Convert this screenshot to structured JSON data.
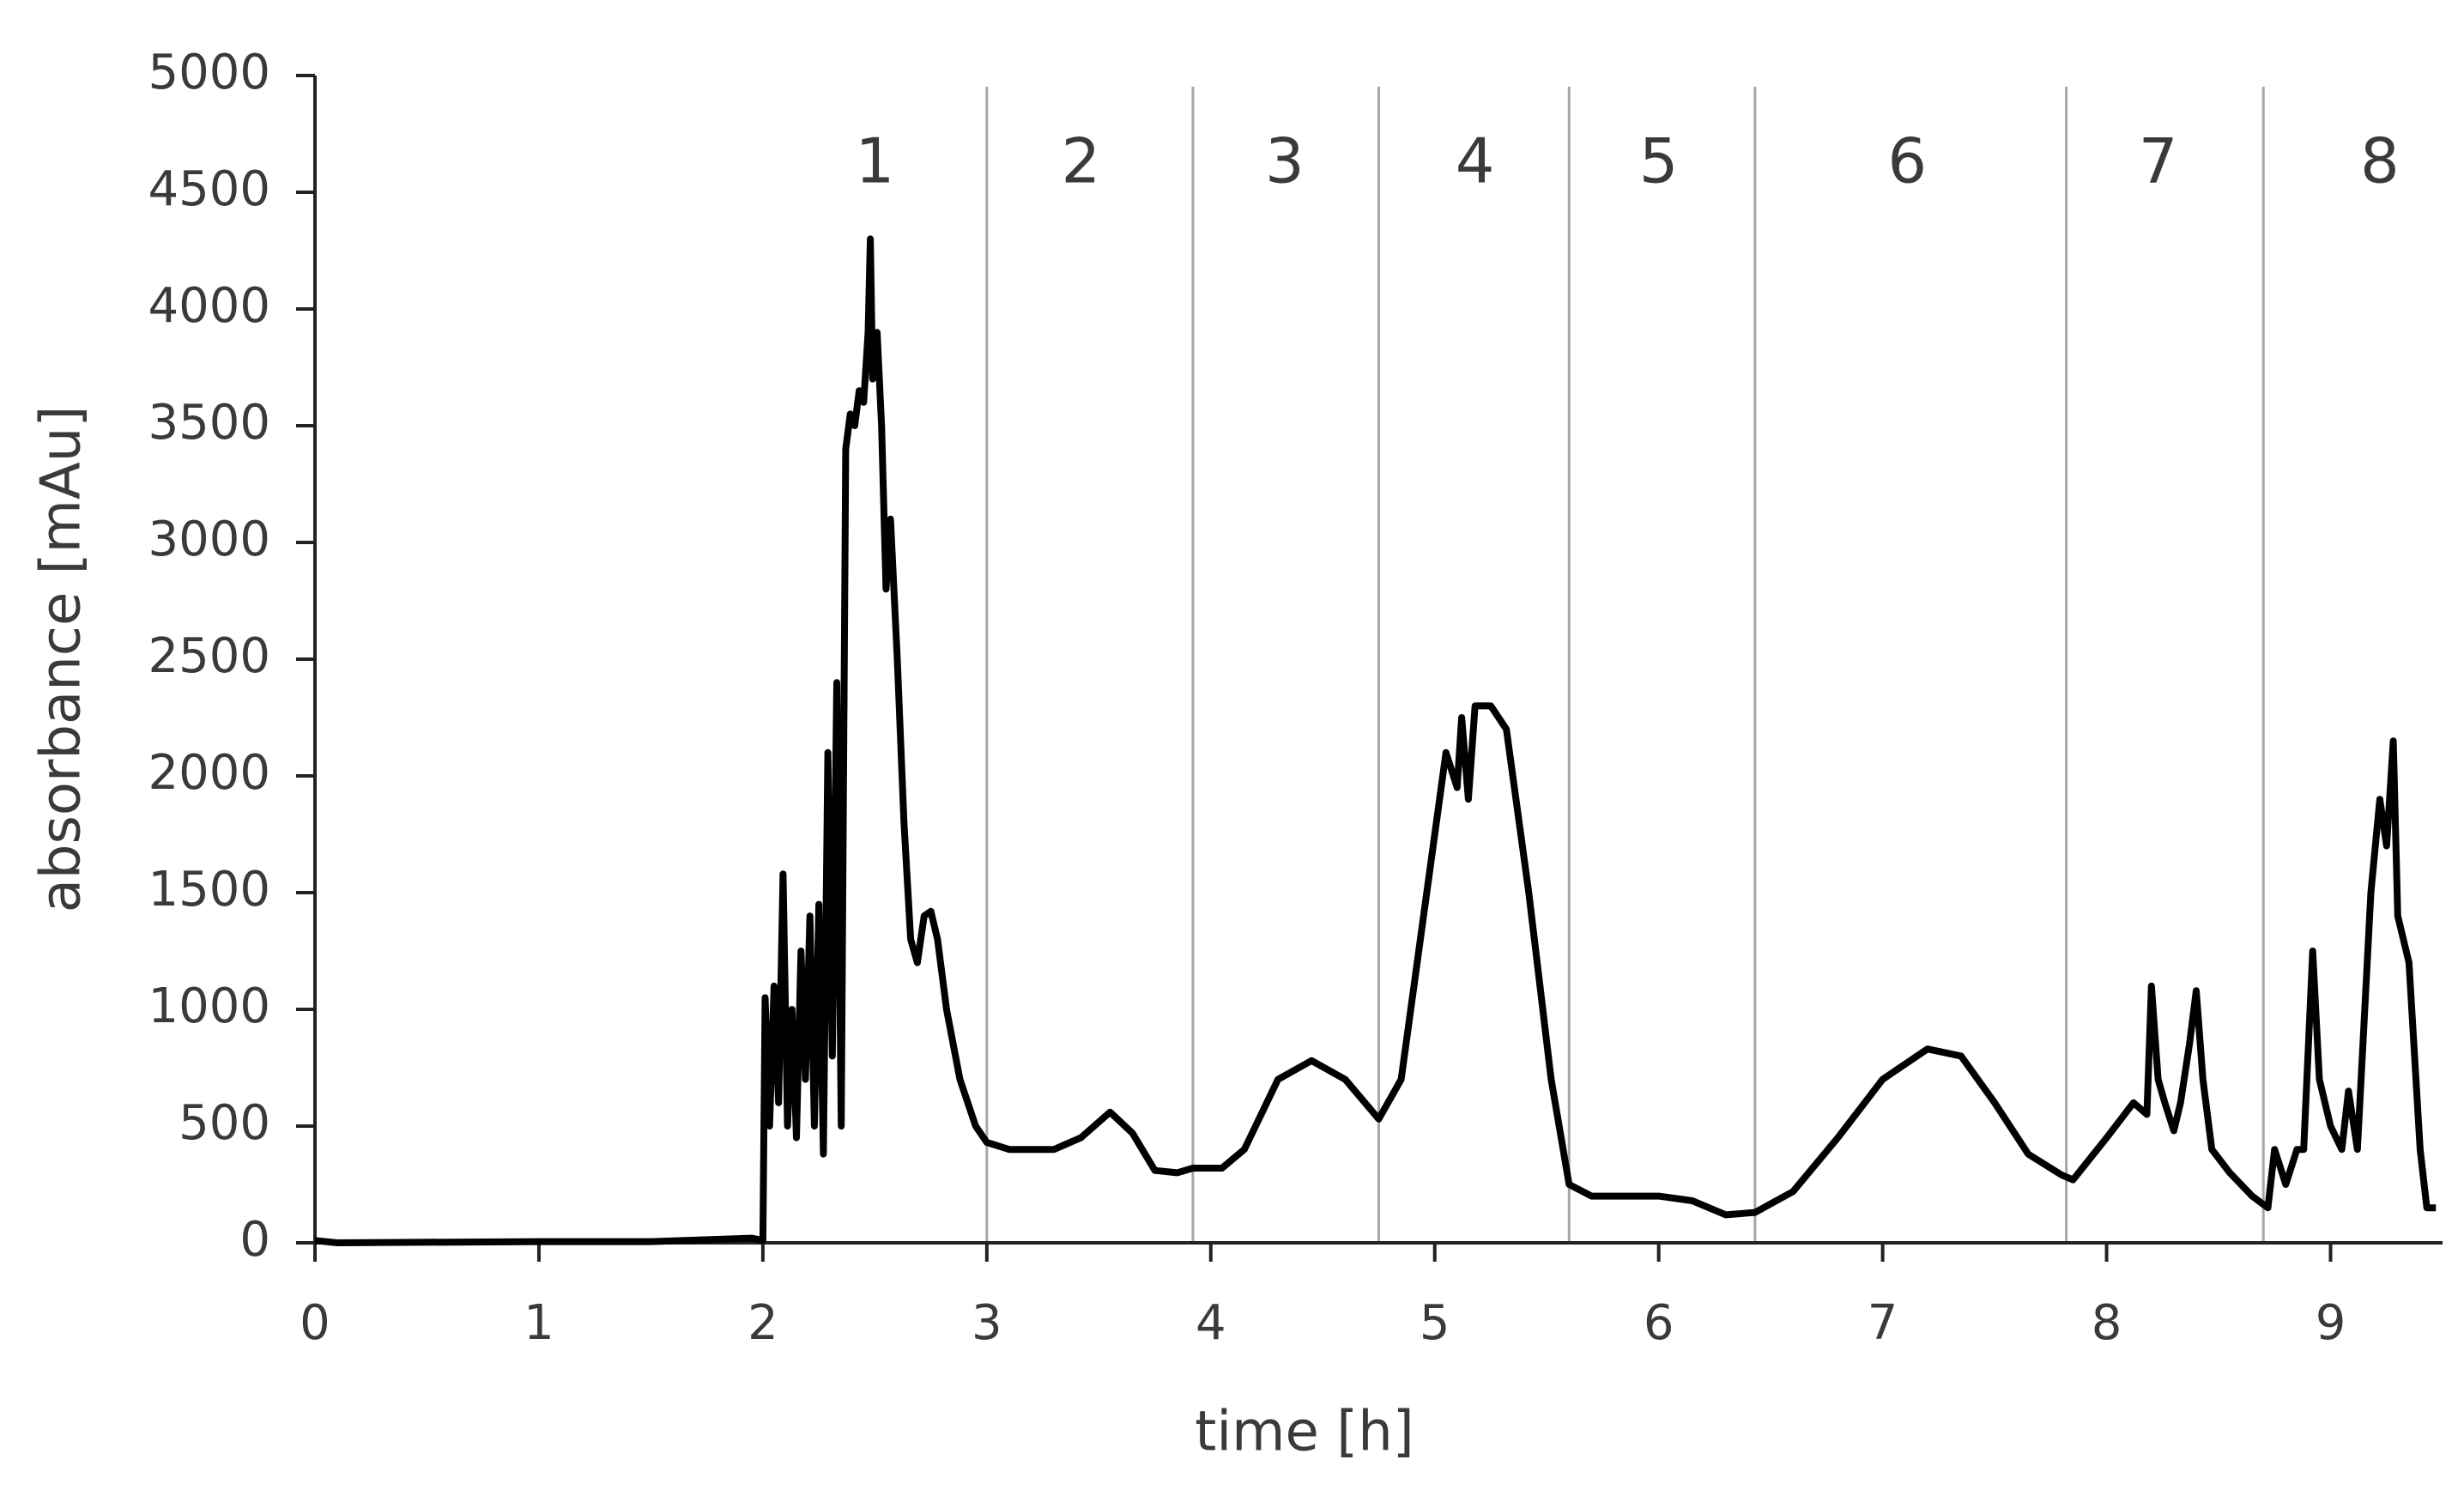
{
  "chart_data": {
    "type": "line",
    "xlabel": "time [h]",
    "ylabel": "absorbance [mAu]",
    "xlim": [
      0,
      9.5
    ],
    "xticks": [
      0,
      1,
      2,
      3,
      4,
      5,
      6,
      7,
      8,
      9
    ],
    "ylim": [
      0,
      5000
    ],
    "yticks": [
      0,
      500,
      1000,
      1500,
      2000,
      2500,
      3000,
      3500,
      4000,
      4500,
      5000
    ],
    "fraction_boundaries": [
      3.0,
      3.92,
      4.75,
      5.6,
      6.43,
      7.82,
      8.7
    ],
    "fractions": [
      {
        "label": "1",
        "x": 2.5
      },
      {
        "label": "2",
        "x": 3.42
      },
      {
        "label": "3",
        "x": 4.33
      },
      {
        "label": "4",
        "x": 5.18
      },
      {
        "label": "5",
        "x": 6.0
      },
      {
        "label": "6",
        "x": 7.11
      },
      {
        "label": "7",
        "x": 8.23
      },
      {
        "label": "8",
        "x": 9.22
      }
    ],
    "series": [
      {
        "color": "#000000",
        "x": [
          0,
          0.1,
          1,
          1.5,
          1.95,
          2.0,
          2.01,
          2.03,
          2.05,
          2.07,
          2.09,
          2.11,
          2.13,
          2.15,
          2.17,
          2.19,
          2.21,
          2.23,
          2.25,
          2.27,
          2.29,
          2.31,
          2.33,
          2.35,
          2.37,
          2.39,
          2.41,
          2.43,
          2.45,
          2.47,
          2.48,
          2.49,
          2.51,
          2.53,
          2.55,
          2.57,
          2.6,
          2.63,
          2.66,
          2.69,
          2.72,
          2.75,
          2.78,
          2.82,
          2.88,
          2.95,
          3.0,
          3.1,
          3.3,
          3.42,
          3.55,
          3.65,
          3.75,
          3.85,
          3.92,
          4.05,
          4.15,
          4.3,
          4.45,
          4.6,
          4.75,
          4.85,
          4.95,
          5.05,
          5.1,
          5.12,
          5.15,
          5.18,
          5.25,
          5.32,
          5.42,
          5.52,
          5.6,
          5.7,
          5.85,
          6.0,
          6.15,
          6.3,
          6.43,
          6.6,
          6.8,
          7.0,
          7.2,
          7.35,
          7.5,
          7.65,
          7.8,
          7.85,
          8.0,
          8.12,
          8.18,
          8.2,
          8.23,
          8.26,
          8.3,
          8.33,
          8.37,
          8.4,
          8.43,
          8.47,
          8.55,
          8.65,
          8.72,
          8.75,
          8.8,
          8.85,
          8.88,
          8.92,
          8.95,
          9.0,
          9.05,
          9.08,
          9.12,
          9.18,
          9.22,
          9.25,
          9.28,
          9.3,
          9.35,
          9.4,
          9.43,
          9.47
        ],
        "values": [
          10,
          0,
          5,
          5,
          20,
          10,
          1050,
          500,
          1100,
          600,
          1580,
          500,
          1000,
          450,
          1250,
          700,
          1400,
          500,
          1450,
          380,
          2100,
          800,
          2400,
          500,
          3400,
          3550,
          3500,
          3650,
          3600,
          3900,
          4300,
          3700,
          3900,
          3500,
          2800,
          3100,
          2500,
          1800,
          1300,
          1200,
          1400,
          1420,
          1300,
          1000,
          700,
          500,
          430,
          400,
          400,
          450,
          560,
          470,
          310,
          300,
          320,
          320,
          400,
          700,
          780,
          700,
          530,
          700,
          1400,
          2100,
          1950,
          2250,
          1900,
          2300,
          2300,
          2200,
          1500,
          700,
          250,
          200,
          200,
          200,
          180,
          120,
          130,
          220,
          450,
          700,
          830,
          800,
          600,
          380,
          290,
          270,
          450,
          600,
          550,
          1100,
          700,
          600,
          480,
          600,
          850,
          1080,
          700,
          400,
          300,
          200,
          150,
          400,
          250,
          400,
          400,
          1250,
          700,
          500,
          400,
          650,
          400,
          1500,
          1900,
          1700,
          2150,
          1400,
          1200,
          400,
          150,
          150
        ]
      }
    ]
  }
}
